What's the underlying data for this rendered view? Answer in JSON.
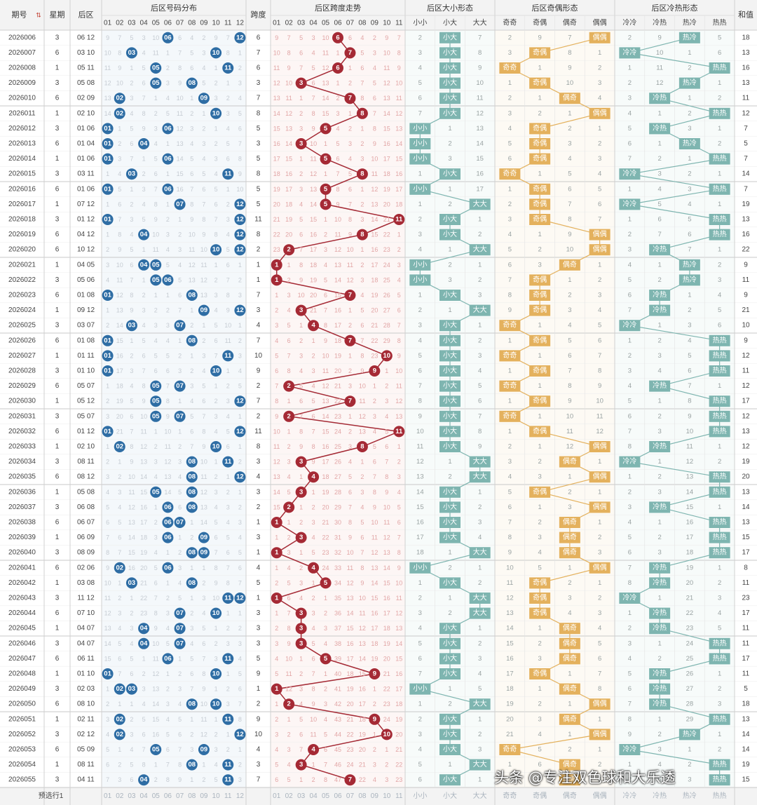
{
  "header": {
    "period": "期号",
    "sort_icon": "sort-arrows-icon",
    "weekday": "星期",
    "back_zone": "后区",
    "dist_group": "后区号码分布",
    "span": "跨度",
    "span_group": "后区跨度走势",
    "size_group": "后区大小形态",
    "parity_group": "后区奇偶形态",
    "hot_group": "后区冷热形态",
    "sum": "和值"
  },
  "numbers": [
    "01",
    "02",
    "03",
    "04",
    "05",
    "06",
    "07",
    "08",
    "09",
    "10",
    "11",
    "12"
  ],
  "span_numbers": [
    "01",
    "02",
    "03",
    "04",
    "05",
    "06",
    "07",
    "08",
    "09",
    "10",
    "11"
  ],
  "size_patterns": [
    "小小",
    "小大",
    "大大"
  ],
  "parity_patterns": [
    "奇奇",
    "奇偶",
    "偶奇",
    "偶偶"
  ],
  "hot_patterns": [
    "冷冷",
    "冷热",
    "热冷",
    "热热"
  ],
  "footer": {
    "label": "预选行1"
  },
  "watermark": "头条 @专注双色球和大乐透",
  "colors": {
    "ball_blue": "#2e6da4",
    "ball_red": "#a52a35",
    "size_box": "#7eb5b0",
    "parity_box": "#e4b15d",
    "hot_box": "#7eb5b0",
    "header_bg": "#f3f3f3"
  },
  "chart_data": {
    "type": "table",
    "rows": [
      {
        "period": "2026006",
        "weekday": "3",
        "back": "06 12",
        "balls": [
          6,
          12
        ],
        "span": 6,
        "size": "小大",
        "parity": "偶偶",
        "hot": "热冷",
        "sum": 18
      },
      {
        "period": "2026007",
        "weekday": "6",
        "back": "03 10",
        "balls": [
          3,
          10
        ],
        "span": 7,
        "size": "小大",
        "parity": "奇偶",
        "hot": "冷冷",
        "sum": 13
      },
      {
        "period": "2026008",
        "weekday": "1",
        "back": "05 11",
        "balls": [
          5,
          11
        ],
        "span": 6,
        "size": "小大",
        "parity": "奇奇",
        "hot": "热热",
        "sum": 16
      },
      {
        "period": "2026009",
        "weekday": "3",
        "back": "05 08",
        "balls": [
          5,
          8
        ],
        "span": 3,
        "size": "小大",
        "parity": "奇偶",
        "hot": "热冷",
        "sum": 13
      },
      {
        "period": "2026010",
        "weekday": "6",
        "back": "02 09",
        "balls": [
          2,
          9
        ],
        "span": 7,
        "size": "小大",
        "parity": "偶奇",
        "hot": "冷热",
        "sum": 11
      },
      {
        "period": "2026011",
        "weekday": "1",
        "back": "02 10",
        "balls": [
          2,
          10
        ],
        "span": 8,
        "size": "小大",
        "parity": "偶偶",
        "hot": "热热",
        "sum": 12
      },
      {
        "period": "2026012",
        "weekday": "3",
        "back": "01 06",
        "balls": [
          1,
          6
        ],
        "span": 5,
        "size": "小小",
        "parity": "奇偶",
        "hot": "冷热",
        "sum": 7
      },
      {
        "period": "2026013",
        "weekday": "6",
        "back": "01 04",
        "balls": [
          1,
          4
        ],
        "span": 3,
        "size": "小小",
        "parity": "奇偶",
        "hot": "热冷",
        "sum": 5
      },
      {
        "period": "2026014",
        "weekday": "1",
        "back": "01 06",
        "balls": [
          1,
          6
        ],
        "span": 5,
        "size": "小小",
        "parity": "奇偶",
        "hot": "热热",
        "sum": 7
      },
      {
        "period": "2026015",
        "weekday": "3",
        "back": "03 11",
        "balls": [
          3,
          11
        ],
        "span": 8,
        "size": "小大",
        "parity": "奇奇",
        "hot": "冷冷",
        "sum": 14
      },
      {
        "period": "2026016",
        "weekday": "6",
        "back": "01 06",
        "balls": [
          1,
          6
        ],
        "span": 5,
        "size": "小小",
        "parity": "奇偶",
        "hot": "热热",
        "sum": 7
      },
      {
        "period": "2026017",
        "weekday": "1",
        "back": "07 12",
        "balls": [
          7,
          12
        ],
        "span": 5,
        "size": "大大",
        "parity": "奇偶",
        "hot": "冷冷",
        "sum": 19
      },
      {
        "period": "2026018",
        "weekday": "3",
        "back": "01 12",
        "balls": [
          1,
          12
        ],
        "span": 11,
        "size": "小大",
        "parity": "奇偶",
        "hot": "热热",
        "sum": 13
      },
      {
        "period": "2026019",
        "weekday": "6",
        "back": "04 12",
        "balls": [
          4,
          12
        ],
        "span": 8,
        "size": "小大",
        "parity": "偶偶",
        "hot": "热热",
        "sum": 16
      },
      {
        "period": "2026020",
        "weekday": "6",
        "back": "10 12",
        "balls": [
          10,
          12
        ],
        "span": 2,
        "size": "大大",
        "parity": "偶偶",
        "hot": "冷热",
        "sum": 22
      },
      {
        "period": "2026021",
        "weekday": "1",
        "back": "04 05",
        "balls": [
          4,
          5
        ],
        "span": 1,
        "size": "小小",
        "parity": "偶奇",
        "hot": "热冷",
        "sum": 9
      },
      {
        "period": "2026022",
        "weekday": "3",
        "back": "05 06",
        "balls": [
          5,
          6
        ],
        "span": 1,
        "size": "小小",
        "parity": "奇偶",
        "hot": "热冷",
        "sum": 11
      },
      {
        "period": "2026023",
        "weekday": "6",
        "back": "01 08",
        "balls": [
          1,
          8
        ],
        "span": 7,
        "size": "小大",
        "parity": "奇偶",
        "hot": "冷热",
        "sum": 9
      },
      {
        "period": "2026024",
        "weekday": "1",
        "back": "09 12",
        "balls": [
          9,
          12
        ],
        "span": 3,
        "size": "大大",
        "parity": "奇偶",
        "hot": "冷热",
        "sum": 21
      },
      {
        "period": "2026025",
        "weekday": "3",
        "back": "03 07",
        "balls": [
          3,
          7
        ],
        "span": 4,
        "size": "小大",
        "parity": "奇奇",
        "hot": "冷冷",
        "sum": 10
      },
      {
        "period": "2026026",
        "weekday": "6",
        "back": "01 08",
        "balls": [
          1,
          8
        ],
        "span": 7,
        "size": "小大",
        "parity": "奇偶",
        "hot": "热热",
        "sum": 9
      },
      {
        "period": "2026027",
        "weekday": "1",
        "back": "01 11",
        "balls": [
          1,
          11
        ],
        "span": 10,
        "size": "小大",
        "parity": "奇奇",
        "hot": "热热",
        "sum": 12
      },
      {
        "period": "2026028",
        "weekday": "3",
        "back": "01 10",
        "balls": [
          1,
          10
        ],
        "span": 9,
        "size": "小大",
        "parity": "奇偶",
        "hot": "热热",
        "sum": 11
      },
      {
        "period": "2026029",
        "weekday": "6",
        "back": "05 07",
        "balls": [
          5,
          7
        ],
        "span": 2,
        "size": "小大",
        "parity": "奇奇",
        "hot": "冷热",
        "sum": 12
      },
      {
        "period": "2026030",
        "weekday": "1",
        "back": "05 12",
        "balls": [
          5,
          12
        ],
        "span": 7,
        "size": "小大",
        "parity": "奇偶",
        "hot": "热热",
        "sum": 17
      },
      {
        "period": "2026031",
        "weekday": "3",
        "back": "05 07",
        "balls": [
          5,
          7
        ],
        "span": 2,
        "size": "小大",
        "parity": "奇奇",
        "hot": "热热",
        "sum": 12
      },
      {
        "period": "2026032",
        "weekday": "6",
        "back": "01 12",
        "balls": [
          1,
          12
        ],
        "span": 11,
        "size": "小大",
        "parity": "奇偶",
        "hot": "热热",
        "sum": 13
      },
      {
        "period": "2026033",
        "weekday": "1",
        "back": "02 10",
        "balls": [
          2,
          10
        ],
        "span": 8,
        "size": "小大",
        "parity": "偶偶",
        "hot": "冷热",
        "sum": 12
      },
      {
        "period": "2026034",
        "weekday": "3",
        "back": "08 11",
        "balls": [
          8,
          11
        ],
        "span": 3,
        "size": "大大",
        "parity": "偶奇",
        "hot": "冷冷",
        "sum": 19
      },
      {
        "period": "2026035",
        "weekday": "6",
        "back": "08 12",
        "balls": [
          8,
          12
        ],
        "span": 4,
        "size": "大大",
        "parity": "偶偶",
        "hot": "热热",
        "sum": 20
      },
      {
        "period": "2026036",
        "weekday": "1",
        "back": "05 08",
        "balls": [
          5,
          8
        ],
        "span": 3,
        "size": "小大",
        "parity": "奇偶",
        "hot": "热热",
        "sum": 13
      },
      {
        "period": "2026037",
        "weekday": "3",
        "back": "06 08",
        "balls": [
          6,
          8
        ],
        "span": 2,
        "size": "小大",
        "parity": "偶偶",
        "hot": "冷热",
        "sum": 14
      },
      {
        "period": "2026038",
        "weekday": "6",
        "back": "06 07",
        "balls": [
          6,
          7
        ],
        "span": 1,
        "size": "小大",
        "parity": "偶奇",
        "hot": "热热",
        "sum": 13
      },
      {
        "period": "2026039",
        "weekday": "1",
        "back": "06 09",
        "balls": [
          6,
          9
        ],
        "span": 3,
        "size": "小大",
        "parity": "偶奇",
        "hot": "热热",
        "sum": 15
      },
      {
        "period": "2026040",
        "weekday": "3",
        "back": "08 09",
        "balls": [
          8,
          9
        ],
        "span": 1,
        "size": "大大",
        "parity": "偶奇",
        "hot": "热热",
        "sum": 17
      },
      {
        "period": "2026041",
        "weekday": "6",
        "back": "02 06",
        "balls": [
          2,
          6
        ],
        "span": 4,
        "size": "小小",
        "parity": "偶偶",
        "hot": "冷热",
        "sum": 8
      },
      {
        "period": "2026042",
        "weekday": "1",
        "back": "03 08",
        "balls": [
          3,
          8
        ],
        "span": 5,
        "size": "小大",
        "parity": "奇偶",
        "hot": "冷热",
        "sum": 11
      },
      {
        "period": "2026043",
        "weekday": "3",
        "back": "11 12",
        "balls": [
          11,
          12
        ],
        "span": 1,
        "size": "大大",
        "parity": "奇偶",
        "hot": "冷冷",
        "sum": 23
      },
      {
        "period": "2026044",
        "weekday": "6",
        "back": "07 10",
        "balls": [
          7,
          10
        ],
        "span": 3,
        "size": "大大",
        "parity": "奇偶",
        "hot": "冷热",
        "sum": 17
      },
      {
        "period": "2026045",
        "weekday": "1",
        "back": "04 07",
        "balls": [
          4,
          7
        ],
        "span": 3,
        "size": "小大",
        "parity": "偶奇",
        "hot": "冷热",
        "sum": 11
      },
      {
        "period": "2026046",
        "weekday": "3",
        "back": "04 07",
        "balls": [
          4,
          7
        ],
        "span": 3,
        "size": "小大",
        "parity": "偶奇",
        "hot": "热热",
        "sum": 11
      },
      {
        "period": "2026047",
        "weekday": "6",
        "back": "06 11",
        "balls": [
          6,
          11
        ],
        "span": 5,
        "size": "小大",
        "parity": "偶奇",
        "hot": "热热",
        "sum": 17
      },
      {
        "period": "2026048",
        "weekday": "1",
        "back": "01 10",
        "balls": [
          1,
          10
        ],
        "span": 9,
        "size": "小大",
        "parity": "奇偶",
        "hot": "冷热",
        "sum": 11
      },
      {
        "period": "2026049",
        "weekday": "3",
        "back": "02 03",
        "balls": [
          2,
          3
        ],
        "span": 1,
        "size": "小小",
        "parity": "偶奇",
        "hot": "冷热",
        "sum": 5
      },
      {
        "period": "2026050",
        "weekday": "6",
        "back": "08 10",
        "balls": [
          8,
          10
        ],
        "span": 2,
        "size": "大大",
        "parity": "偶偶",
        "hot": "冷热",
        "sum": 18
      },
      {
        "period": "2026051",
        "weekday": "1",
        "back": "02 11",
        "balls": [
          2,
          11
        ],
        "span": 9,
        "size": "小大",
        "parity": "偶奇",
        "hot": "热热",
        "sum": 13
      },
      {
        "period": "2026052",
        "weekday": "3",
        "back": "02 12",
        "balls": [
          2,
          12
        ],
        "span": 10,
        "size": "小大",
        "parity": "偶偶",
        "hot": "热冷",
        "sum": 14
      },
      {
        "period": "2026053",
        "weekday": "6",
        "back": "05 09",
        "balls": [
          5,
          9
        ],
        "span": 4,
        "size": "小大",
        "parity": "奇奇",
        "hot": "冷冷",
        "sum": 14
      },
      {
        "period": "2026054",
        "weekday": "1",
        "back": "08 11",
        "balls": [
          8,
          11
        ],
        "span": 3,
        "size": "大大",
        "parity": "偶奇",
        "hot": "热热",
        "sum": 19
      },
      {
        "period": "2026055",
        "weekday": "3",
        "back": "04 11",
        "balls": [
          4,
          11
        ],
        "span": 7,
        "size": "小大",
        "parity": "偶奇",
        "hot": "热热",
        "sum": 15
      }
    ]
  }
}
